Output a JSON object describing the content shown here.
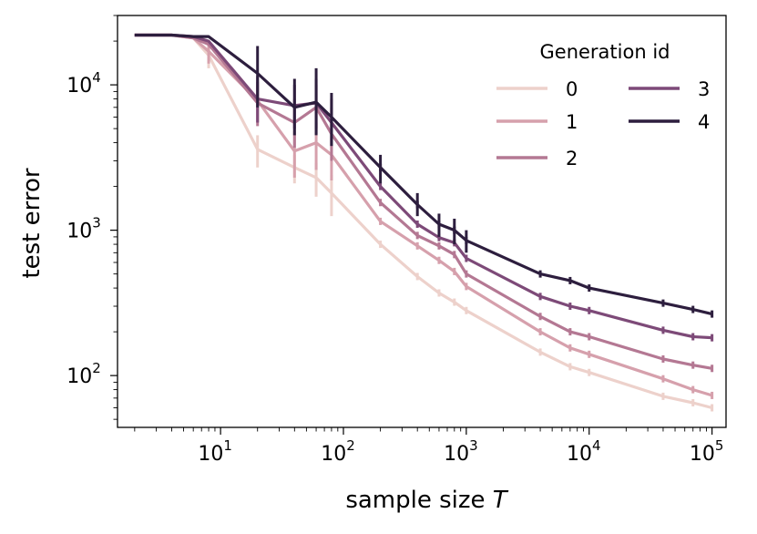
{
  "chart_data": {
    "type": "line",
    "title": "",
    "xlabel": "sample size",
    "xlabel_var": "T",
    "ylabel": "test error",
    "xscale": "log",
    "yscale": "log",
    "xlim": [
      1.45,
      130000
    ],
    "ylim": [
      44,
      30000
    ],
    "x_ticks": [
      {
        "value": 10,
        "base": "10",
        "exp": "1"
      },
      {
        "value": 100,
        "base": "10",
        "exp": "2"
      },
      {
        "value": 1000,
        "base": "10",
        "exp": "3"
      },
      {
        "value": 10000,
        "base": "10",
        "exp": "4"
      },
      {
        "value": 100000,
        "base": "10",
        "exp": "5"
      }
    ],
    "y_ticks": [
      {
        "value": 100,
        "base": "10",
        "exp": "2"
      },
      {
        "value": 1000,
        "base": "10",
        "exp": "3"
      },
      {
        "value": 10000,
        "base": "10",
        "exp": "4"
      }
    ],
    "legend": {
      "title": "Generation id",
      "position": "top-right",
      "columns": 2
    },
    "x": [
      2,
      4,
      6,
      8,
      20,
      40,
      60,
      80,
      200,
      400,
      600,
      800,
      1000,
      4000,
      7000,
      10000,
      40000,
      70000,
      100000
    ],
    "series": [
      {
        "name": "0",
        "color": "#edd1cb",
        "values": [
          22000,
          22000,
          21000,
          16000,
          3600,
          2700,
          2300,
          1800,
          800,
          480,
          370,
          320,
          280,
          145,
          115,
          105,
          72,
          65,
          60
        ],
        "errors": [
          {
            "x": 8,
            "low": 13000,
            "high": 19000
          },
          {
            "x": 20,
            "low": 2700,
            "high": 4500
          },
          {
            "x": 40,
            "low": 2100,
            "high": 3300
          },
          {
            "x": 60,
            "low": 1700,
            "high": 2900
          },
          {
            "x": 80,
            "low": 1250,
            "high": 2400
          }
        ]
      },
      {
        "name": "1",
        "color": "#d6a0ac",
        "values": [
          22000,
          22000,
          21000,
          17000,
          7800,
          3500,
          4000,
          3300,
          1150,
          780,
          620,
          520,
          410,
          200,
          155,
          140,
          95,
          80,
          73
        ],
        "errors": [
          {
            "x": 8,
            "low": 14000,
            "high": 20000
          },
          {
            "x": 20,
            "low": 5500,
            "high": 10000
          },
          {
            "x": 40,
            "low": 2300,
            "high": 4800
          },
          {
            "x": 60,
            "low": 2600,
            "high": 5500
          },
          {
            "x": 80,
            "low": 2200,
            "high": 4600
          }
        ]
      },
      {
        "name": "2",
        "color": "#b47893",
        "values": [
          22000,
          22000,
          21000,
          19000,
          7500,
          5500,
          7000,
          4600,
          1550,
          920,
          780,
          680,
          500,
          255,
          200,
          185,
          130,
          118,
          112
        ],
        "errors": [
          {
            "x": 20,
            "low": 5200,
            "high": 10500
          },
          {
            "x": 40,
            "low": 3700,
            "high": 8000
          },
          {
            "x": 60,
            "low": 4600,
            "high": 10000
          },
          {
            "x": 80,
            "low": 3000,
            "high": 7000
          }
        ]
      },
      {
        "name": "3",
        "color": "#7d4a78",
        "values": [
          22000,
          22000,
          21500,
          20000,
          8000,
          7200,
          7500,
          5500,
          2000,
          1100,
          890,
          820,
          640,
          350,
          300,
          280,
          205,
          185,
          182
        ],
        "errors": [
          {
            "x": 20,
            "low": 5500,
            "high": 11500
          },
          {
            "x": 40,
            "low": 5000,
            "high": 10000
          },
          {
            "x": 60,
            "low": 5000,
            "high": 11000
          },
          {
            "x": 80,
            "low": 3800,
            "high": 8000
          }
        ]
      },
      {
        "name": "4",
        "color": "#2d1e3e",
        "values": [
          22000,
          22000,
          21500,
          21500,
          12000,
          7000,
          7600,
          6000,
          2700,
          1500,
          1100,
          1000,
          850,
          500,
          450,
          400,
          315,
          285,
          265
        ],
        "errors": [
          {
            "x": 20,
            "low": 7000,
            "high": 18500
          },
          {
            "x": 40,
            "low": 4500,
            "high": 11000
          },
          {
            "x": 60,
            "low": 4500,
            "high": 13000
          },
          {
            "x": 80,
            "low": 3800,
            "high": 8800
          },
          {
            "x": 200,
            "low": 2100,
            "high": 3300
          },
          {
            "x": 400,
            "low": 1250,
            "high": 1800
          },
          {
            "x": 600,
            "low": 900,
            "high": 1300
          },
          {
            "x": 800,
            "low": 800,
            "high": 1200
          },
          {
            "x": 1000,
            "low": 700,
            "high": 1000
          }
        ]
      }
    ]
  }
}
